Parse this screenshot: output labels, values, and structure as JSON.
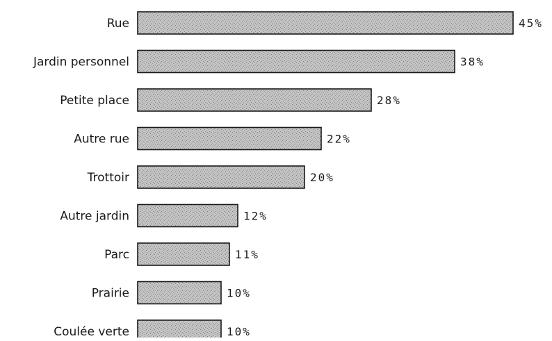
{
  "chart_data": {
    "type": "bar",
    "orientation": "horizontal",
    "categories": [
      "Rue",
      "Jardin personnel",
      "Petite place",
      "Autre rue",
      "Trottoir",
      "Autre jardin",
      "Parc",
      "Prairie",
      "Coulée verte"
    ],
    "values": [
      45,
      38,
      28,
      22,
      20,
      12,
      11,
      10,
      10
    ],
    "value_labels": [
      "45%",
      "38%",
      "28%",
      "22%",
      "20%",
      "12%",
      "11%",
      "10%",
      "10%"
    ],
    "unit": "%",
    "xlim": [
      0,
      45
    ],
    "grid": false,
    "legend": "none",
    "bar_fill": "#bdbdbd",
    "bar_texture": "#8f8f8f",
    "bar_stroke": "#1a1a1a"
  }
}
